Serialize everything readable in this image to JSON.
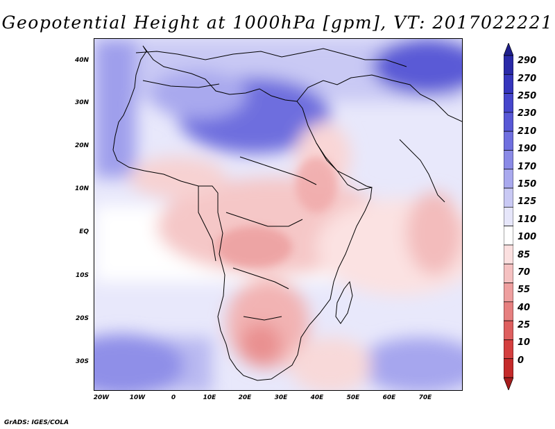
{
  "title": "Geopotential Height at 1000hPa [gpm], VT: 2017022221",
  "credit": "GrADS: IGES/COLA",
  "map": {
    "lat_labels": [
      "40N",
      "30N",
      "20N",
      "10N",
      "EQ",
      "10S",
      "20S",
      "30S"
    ],
    "lon_labels": [
      "20W",
      "10W",
      "0",
      "10E",
      "20E",
      "30E",
      "40E",
      "50E",
      "60E",
      "70E"
    ],
    "lon_range": [
      -22,
      80
    ],
    "lat_range": [
      -37,
      45
    ]
  },
  "colorbar": {
    "levels": [
      "290",
      "270",
      "250",
      "230",
      "210",
      "190",
      "170",
      "150",
      "125",
      "110",
      "100",
      "85",
      "70",
      "55",
      "40",
      "25",
      "10",
      "0"
    ],
    "colors": [
      "#1f1f8c",
      "#2a2aa8",
      "#3636bd",
      "#4646cc",
      "#5858d6",
      "#6f6fdf",
      "#8a8ae6",
      "#a9a9ee",
      "#c9c9f4",
      "#e6e6fa",
      "#ffffff",
      "#fbe0e0",
      "#f5c1c1",
      "#ee9f9f",
      "#e67f7f",
      "#de5f5f",
      "#d43f3f",
      "#c42a2a",
      "#a61c1c"
    ]
  }
}
